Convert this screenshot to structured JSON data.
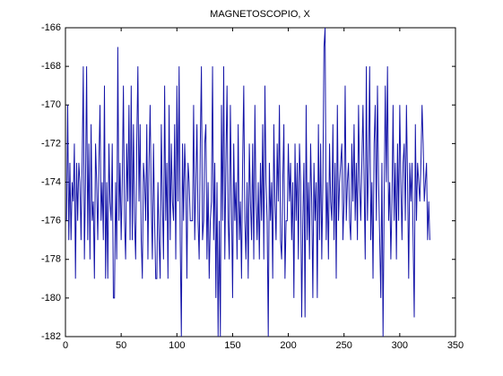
{
  "chart_data": {
    "type": "line",
    "title": "MAGNETOSCOPIO, X",
    "color": "#1414a8",
    "xlim": [
      0,
      350
    ],
    "xticks": [
      0,
      50,
      100,
      150,
      200,
      250,
      300,
      350
    ],
    "ylim": [
      -182,
      -166
    ],
    "yticks": [
      -182,
      -180,
      -178,
      -176,
      -174,
      -172,
      -170,
      -168,
      -166
    ],
    "x": [
      1,
      2,
      3,
      4,
      5,
      6,
      7,
      8,
      9,
      10,
      11,
      12,
      13,
      14,
      15,
      16,
      17,
      18,
      19,
      20,
      21,
      22,
      23,
      24,
      25,
      26,
      27,
      28,
      29,
      30,
      31,
      32,
      33,
      34,
      35,
      36,
      37,
      38,
      39,
      40,
      41,
      42,
      43,
      44,
      45,
      46,
      47,
      48,
      49,
      50,
      51,
      52,
      53,
      54,
      55,
      56,
      57,
      58,
      59,
      60,
      61,
      62,
      63,
      64,
      65,
      66,
      67,
      68,
      69,
      70,
      71,
      72,
      73,
      74,
      75,
      76,
      77,
      78,
      79,
      80,
      81,
      82,
      83,
      84,
      85,
      86,
      87,
      88,
      89,
      90,
      91,
      92,
      93,
      94,
      95,
      96,
      97,
      98,
      99,
      100,
      101,
      102,
      103,
      104,
      105,
      106,
      107,
      108,
      109,
      110,
      111,
      112,
      113,
      114,
      115,
      116,
      117,
      118,
      119,
      120,
      121,
      122,
      123,
      124,
      125,
      126,
      127,
      128,
      129,
      130,
      131,
      132,
      133,
      134,
      135,
      136,
      137,
      138,
      139,
      140,
      141,
      142,
      143,
      144,
      145,
      146,
      147,
      148,
      149,
      150,
      151,
      152,
      153,
      154,
      155,
      156,
      157,
      158,
      159,
      160,
      161,
      162,
      163,
      164,
      165,
      166,
      167,
      168,
      169,
      170,
      171,
      172,
      173,
      174,
      175,
      176,
      177,
      178,
      179,
      180,
      181,
      182,
      183,
      184,
      185,
      186,
      187,
      188,
      189,
      190,
      191,
      192,
      193,
      194,
      195,
      196,
      197,
      198,
      199,
      200,
      201,
      202,
      203,
      204,
      205,
      206,
      207,
      208,
      209,
      210,
      211,
      212,
      213,
      214,
      215,
      216,
      217,
      218,
      219,
      220,
      221,
      222,
      223,
      224,
      225,
      226,
      227,
      228,
      229,
      230,
      231,
      232,
      233,
      234,
      235,
      236,
      237,
      238,
      239,
      240,
      241,
      242,
      243,
      244,
      245,
      246,
      247,
      248,
      249,
      250,
      251,
      252,
      253,
      254,
      255,
      256,
      257,
      258,
      259,
      260,
      261,
      262,
      263,
      264,
      265,
      266,
      267,
      268,
      269,
      270,
      271,
      272,
      273,
      274,
      275,
      276,
      277,
      278,
      279,
      280,
      281,
      282,
      283,
      284,
      285,
      286,
      287,
      288,
      289,
      290,
      291,
      292,
      293,
      294,
      295,
      296,
      297,
      298,
      299,
      300,
      301,
      302,
      303,
      304,
      305,
      306,
      307,
      308,
      309,
      310,
      311,
      312,
      313,
      314,
      315,
      316,
      317,
      318,
      319,
      320,
      321,
      322,
      323,
      324,
      325,
      326,
      327
    ],
    "values": [
      -176,
      -170,
      -177,
      -173,
      -177,
      -174,
      -175,
      -172,
      -179,
      -173,
      -176,
      -173,
      -174,
      -177,
      -173,
      -168,
      -178,
      -174,
      -168,
      -177,
      -172,
      -178,
      -171,
      -176,
      -175,
      -179,
      -172,
      -174,
      -177,
      -173,
      -170,
      -176,
      -174,
      -177,
      -169,
      -179,
      -174,
      -179,
      -172,
      -175,
      -176,
      -172,
      -180,
      -180,
      -174,
      -178,
      -167,
      -176,
      -173,
      -177,
      -174,
      -169,
      -176,
      -178,
      -172,
      -175,
      -170,
      -177,
      -169,
      -177,
      -171,
      -176,
      -178,
      -172,
      -168,
      -175,
      -171,
      -177,
      -179,
      -173,
      -174,
      -176,
      -171,
      -178,
      -173,
      -170,
      -175,
      -178,
      -172,
      -176,
      -179,
      -179,
      -174,
      -177,
      -179,
      -171,
      -175,
      -178,
      -169,
      -176,
      -173,
      -179,
      -170,
      -177,
      -172,
      -175,
      -176,
      -171,
      -178,
      -169,
      -175,
      -168,
      -177,
      -182,
      -172,
      -176,
      -172,
      -174,
      -179,
      -173,
      -174,
      -176,
      -176,
      -176,
      -170,
      -177,
      -174,
      -171,
      -176,
      -178,
      -172,
      -168,
      -177,
      -176,
      -172,
      -171,
      -178,
      -174,
      -179,
      -176,
      -175,
      -168,
      -177,
      -173,
      -180,
      -174,
      -182,
      -176,
      -182,
      -170,
      -176,
      -168,
      -178,
      -173,
      -169,
      -176,
      -178,
      -170,
      -175,
      -180,
      -172,
      -176,
      -174,
      -178,
      -171,
      -177,
      -175,
      -179,
      -173,
      -169,
      -176,
      -178,
      -174,
      -179,
      -172,
      -175,
      -177,
      -172,
      -178,
      -170,
      -175,
      -177,
      -174,
      -178,
      -173,
      -176,
      -171,
      -178,
      -169,
      -174,
      -176,
      -182,
      -173,
      -176,
      -174,
      -179,
      -171,
      -175,
      -177,
      -172,
      -175,
      -170,
      -177,
      -178,
      -174,
      -171,
      -179,
      -176,
      -176,
      -172,
      -175,
      -173,
      -177,
      -174,
      -180,
      -172,
      -176,
      -173,
      -178,
      -172,
      -174,
      -181,
      -176,
      -173,
      -181,
      -170,
      -177,
      -174,
      -178,
      -172,
      -175,
      -180,
      -173,
      -176,
      -174,
      -180,
      -171,
      -177,
      -172,
      -178,
      -174,
      -167,
      -166,
      -177,
      -174,
      -178,
      -172,
      -175,
      -176,
      -171,
      -177,
      -173,
      -179,
      -170,
      -176,
      -174,
      -173,
      -172,
      -177,
      -175,
      -169,
      -176,
      -174,
      -173,
      -176,
      -177,
      -172,
      -175,
      -171,
      -176,
      -173,
      -177,
      -170,
      -174,
      -176,
      -173,
      -170,
      -174,
      -178,
      -168,
      -176,
      -173,
      -168,
      -177,
      -174,
      -179,
      -172,
      -170,
      -176,
      -169,
      -174,
      -177,
      -180,
      -173,
      -182,
      -175,
      -169,
      -174,
      -168,
      -176,
      -174,
      -178,
      -175,
      -170,
      -176,
      -173,
      -178,
      -172,
      -176,
      -170,
      -174,
      -177,
      -173,
      -172,
      -176,
      -170,
      -174,
      -179,
      -173,
      -175,
      -173,
      -177,
      -181,
      -171,
      -176,
      -173,
      -174,
      -175,
      -173,
      -170,
      -172,
      -175,
      -174,
      -173,
      -177,
      -175,
      -177
    ]
  }
}
